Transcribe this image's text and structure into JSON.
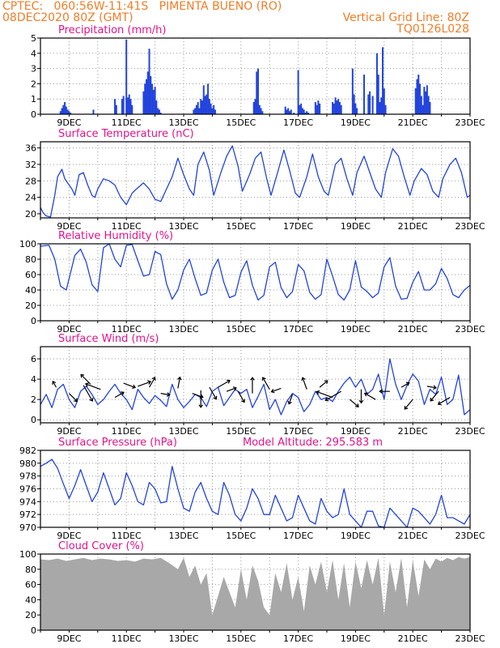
{
  "header": {
    "line1": "CPTEC:   060:56W-11:41S   PIMENTA BUENO (RO)",
    "line2_left": "08DEC2020 80Z (GMT)",
    "line2_right": "Vertical Grid Line: 80Z",
    "line3_right": "TQ0126L028"
  },
  "colors": {
    "header": "#f07d28",
    "title": "#e0148c",
    "series": "#2244dd",
    "cloud": "#a8a8a8",
    "arrow": "#000000"
  },
  "x_ticks": [
    "9DEC",
    "11DEC",
    "13DEC",
    "15DEC",
    "17DEC",
    "19DEC",
    "21DEC",
    "23DEC"
  ],
  "chart_data": [
    {
      "id": "precip",
      "type": "bar",
      "title": "Precipitation (mm/h)",
      "ylim": [
        0,
        5
      ],
      "yticks": [
        0,
        1,
        2,
        3,
        4,
        5
      ],
      "xlim": [
        0,
        15
      ],
      "grid": true,
      "x": [
        0.7,
        0.75,
        0.8,
        0.85,
        0.9,
        0.95,
        1.0,
        1.05,
        1.85,
        2.6,
        2.65,
        2.85,
        2.9,
        3.0,
        3.05,
        3.1,
        3.15,
        3.2,
        3.6,
        3.65,
        3.7,
        3.75,
        3.8,
        3.85,
        3.9,
        3.95,
        4.0,
        4.05,
        4.1,
        4.15,
        4.2,
        5.35,
        5.4,
        5.45,
        5.5,
        5.55,
        5.6,
        5.65,
        5.7,
        5.75,
        5.8,
        5.85,
        5.9,
        5.95,
        6.0,
        6.05,
        6.1,
        7.45,
        7.5,
        7.55,
        7.6,
        7.65,
        7.7,
        7.75,
        8.55,
        8.6,
        8.65,
        8.7,
        8.75,
        8.85,
        9.0,
        9.05,
        9.1,
        9.15,
        9.2,
        9.25,
        9.3,
        9.35,
        9.6,
        9.65,
        9.7,
        9.75,
        10.2,
        10.25,
        10.3,
        10.35,
        10.4,
        10.45,
        10.5,
        10.9,
        10.95,
        11.0,
        11.05,
        11.3,
        11.45,
        11.5,
        11.6,
        11.75,
        11.8,
        11.85,
        11.9,
        11.95,
        12.0,
        12.05,
        13.1,
        13.15,
        13.2,
        13.25,
        13.3,
        13.35,
        13.4,
        13.45,
        13.5,
        13.55,
        13.6
      ],
      "values": [
        0.2,
        0.4,
        0.6,
        0.8,
        0.5,
        0.3,
        0.2,
        0.1,
        0.3,
        1.0,
        0.6,
        1.0,
        1.2,
        4.9,
        1.1,
        1.3,
        1.0,
        0.6,
        1.5,
        2.0,
        2.3,
        2.8,
        4.3,
        2.5,
        2.0,
        1.6,
        1.8,
        0.9,
        0.4,
        0.3,
        0.1,
        0.3,
        0.4,
        0.6,
        0.8,
        0.4,
        1.0,
        0.9,
        1.9,
        1.2,
        1.3,
        2.0,
        1.0,
        0.7,
        0.4,
        0.6,
        0.3,
        0.8,
        1.0,
        2.8,
        3.0,
        0.6,
        0.4,
        0.2,
        0.5,
        0.3,
        0.4,
        0.2,
        0.3,
        0.1,
        2.9,
        0.6,
        0.7,
        0.4,
        0.3,
        0.1,
        0.2,
        0.1,
        0.8,
        0.6,
        0.9,
        0.7,
        0.8,
        0.7,
        1.1,
        0.9,
        1.0,
        0.8,
        0.6,
        3.0,
        1.3,
        0.7,
        0.4,
        2.6,
        1.3,
        1.5,
        1.2,
        4.0,
        2.6,
        0.8,
        1.1,
        4.4,
        1.7,
        0.6,
        1.7,
        2.3,
        2.6,
        2.0,
        1.2,
        0.6,
        1.8,
        1.5,
        1.9,
        1.2,
        0.8
      ]
    },
    {
      "id": "temp",
      "type": "line",
      "title": "Surface Temperature (nC)",
      "ylim": [
        19,
        37.5
      ],
      "yticks": [
        20,
        24,
        28,
        32,
        36
      ],
      "xlim": [
        0,
        15
      ],
      "grid": true,
      "x": [
        0,
        0.1,
        0.2,
        0.35,
        0.5,
        0.6,
        0.75,
        0.85,
        0.95,
        1.1,
        1.2,
        1.35,
        1.5,
        1.65,
        1.8,
        1.9,
        2.0,
        2.2,
        2.4,
        2.6,
        2.8,
        3.0,
        3.2,
        3.35,
        3.6,
        3.8,
        4.0,
        4.2,
        4.4,
        4.6,
        4.8,
        5.0,
        5.2,
        5.35,
        5.5,
        5.7,
        5.9,
        6.05,
        6.3,
        6.5,
        6.7,
        6.9,
        7.05,
        7.3,
        7.5,
        7.7,
        7.9,
        8.05,
        8.3,
        8.5,
        8.7,
        8.9,
        9.05,
        9.3,
        9.5,
        9.7,
        9.9,
        10.05,
        10.3,
        10.5,
        10.7,
        10.9,
        11.05,
        11.3,
        11.5,
        11.7,
        11.9,
        12.05,
        12.3,
        12.5,
        12.7,
        12.9,
        13.05,
        13.3,
        13.5,
        13.7,
        13.9,
        14.05,
        14.3,
        14.5,
        14.7,
        14.9,
        15.0
      ],
      "values": [
        21.5,
        20.2,
        19.5,
        19.2,
        24.5,
        29.0,
        30.8,
        28.5,
        27.5,
        26.0,
        24.5,
        29.5,
        30.0,
        27.0,
        24.5,
        24.0,
        26.0,
        28.5,
        28.0,
        27.0,
        24.0,
        22.2,
        25.0,
        26.0,
        27.5,
        26.0,
        23.5,
        23.0,
        26.0,
        29.0,
        33.5,
        29.5,
        26.0,
        24.5,
        32.0,
        35.0,
        30.5,
        24.5,
        30.0,
        34.0,
        36.5,
        31.5,
        25.5,
        29.5,
        33.5,
        35.0,
        28.5,
        24.5,
        30.5,
        35.5,
        30.5,
        25.0,
        24.0,
        29.0,
        34.5,
        29.0,
        25.5,
        24.5,
        32.0,
        33.5,
        28.5,
        24.5,
        30.0,
        34.0,
        30.0,
        26.0,
        24.0,
        30.0,
        35.8,
        34.0,
        29.0,
        24.5,
        28.0,
        31.0,
        29.5,
        25.5,
        24.0,
        28.5,
        32.0,
        33.5,
        30.0,
        24.0,
        24.5
      ]
    },
    {
      "id": "rh",
      "type": "line",
      "title": "Relative Humidity (%)",
      "ylim": [
        0,
        100
      ],
      "yticks": [
        0,
        20,
        40,
        60,
        80,
        100
      ],
      "xlim": [
        0,
        15
      ],
      "grid": true,
      "x": [
        0,
        0.3,
        0.5,
        0.7,
        0.9,
        1.2,
        1.4,
        1.6,
        1.8,
        2.0,
        2.2,
        2.4,
        2.6,
        2.8,
        3.0,
        3.2,
        3.4,
        3.6,
        3.8,
        4.0,
        4.2,
        4.4,
        4.6,
        4.8,
        5.0,
        5.2,
        5.4,
        5.6,
        5.8,
        6.0,
        6.2,
        6.4,
        6.6,
        6.8,
        7.0,
        7.2,
        7.4,
        7.6,
        7.8,
        8.0,
        8.2,
        8.4,
        8.6,
        8.8,
        9.0,
        9.2,
        9.4,
        9.6,
        9.8,
        10.0,
        10.2,
        10.4,
        10.6,
        10.8,
        11.0,
        11.2,
        11.4,
        11.6,
        11.8,
        12.0,
        12.2,
        12.4,
        12.6,
        12.8,
        13.0,
        13.2,
        13.4,
        13.6,
        13.8,
        14.0,
        14.2,
        14.4,
        14.6,
        14.8,
        15.0
      ],
      "values": [
        97,
        98,
        80,
        45,
        40,
        85,
        93,
        76,
        47,
        38,
        95,
        100,
        80,
        70,
        98,
        99,
        78,
        58,
        60,
        90,
        86,
        48,
        28,
        40,
        66,
        80,
        55,
        33,
        36,
        66,
        80,
        50,
        30,
        33,
        63,
        78,
        46,
        27,
        33,
        70,
        76,
        43,
        30,
        38,
        73,
        65,
        37,
        28,
        34,
        80,
        58,
        34,
        27,
        40,
        78,
        44,
        38,
        30,
        36,
        70,
        82,
        45,
        28,
        29,
        50,
        64,
        40,
        40,
        48,
        68,
        55,
        34,
        30,
        40,
        46
      ]
    },
    {
      "id": "wind",
      "type": "line",
      "title": "Surface Wind (m/s)",
      "ylim": [
        -0.3,
        7.2
      ],
      "yticks": [
        0,
        2,
        4,
        6
      ],
      "xlim": [
        0,
        15
      ],
      "grid": true,
      "x": [
        0,
        0.2,
        0.4,
        0.6,
        0.8,
        1.0,
        1.2,
        1.4,
        1.6,
        1.8,
        2.0,
        2.2,
        2.4,
        2.6,
        2.8,
        3.0,
        3.2,
        3.4,
        3.6,
        3.8,
        4.0,
        4.2,
        4.4,
        4.6,
        4.8,
        5.0,
        5.2,
        5.4,
        5.6,
        5.8,
        6.0,
        6.2,
        6.4,
        6.6,
        6.8,
        7.0,
        7.2,
        7.4,
        7.6,
        7.8,
        8.0,
        8.2,
        8.4,
        8.6,
        8.8,
        9.0,
        9.2,
        9.4,
        9.6,
        9.8,
        10.0,
        10.2,
        10.4,
        10.6,
        10.8,
        11.0,
        11.2,
        11.4,
        11.6,
        11.8,
        12.0,
        12.2,
        12.4,
        12.6,
        12.8,
        13.0,
        13.2,
        13.4,
        13.6,
        13.8,
        14.0,
        14.2,
        14.4,
        14.6,
        14.8,
        15.0
      ],
      "values": [
        1.5,
        2.5,
        1.2,
        3.0,
        3.5,
        2.0,
        1.2,
        2.8,
        3.3,
        2.5,
        1.5,
        2.0,
        2.8,
        3.5,
        2.6,
        2.0,
        1.0,
        3.0,
        2.2,
        1.6,
        2.4,
        1.9,
        1.3,
        3.5,
        2.0,
        1.2,
        1.8,
        2.5,
        2.2,
        1.3,
        2.8,
        3.2,
        1.4,
        2.2,
        3.0,
        2.6,
        3.0,
        1.2,
        2.3,
        3.5,
        1.0,
        2.0,
        0.5,
        1.8,
        2.6,
        2.2,
        0.8,
        1.5,
        2.8,
        2.0,
        2.2,
        1.8,
        2.8,
        3.6,
        4.2,
        3.2,
        4.0,
        2.5,
        3.0,
        4.5,
        2.0,
        6.0,
        3.5,
        2.0,
        3.4,
        4.5,
        3.8,
        1.5,
        3.0,
        2.5,
        4.2,
        1.5,
        2.0,
        4.4,
        0.5,
        1.0
      ]
    },
    {
      "id": "pres",
      "type": "line",
      "title": "Surface Pressure (hPa)",
      "annotation": "Model Altitude: 295.583 m",
      "ylim": [
        970,
        982
      ],
      "yticks": [
        970,
        972,
        974,
        976,
        978,
        980,
        982
      ],
      "xlim": [
        0,
        15
      ],
      "grid": true,
      "x": [
        0,
        0.2,
        0.4,
        0.6,
        0.8,
        1.0,
        1.2,
        1.4,
        1.6,
        1.8,
        2.0,
        2.2,
        2.4,
        2.6,
        2.8,
        3.0,
        3.2,
        3.4,
        3.6,
        3.8,
        4.0,
        4.2,
        4.4,
        4.6,
        4.8,
        5.0,
        5.2,
        5.4,
        5.6,
        5.8,
        6.0,
        6.2,
        6.4,
        6.6,
        6.8,
        7.0,
        7.2,
        7.4,
        7.6,
        7.8,
        8.0,
        8.2,
        8.4,
        8.6,
        8.8,
        9.0,
        9.2,
        9.4,
        9.6,
        9.8,
        10.0,
        10.2,
        10.4,
        10.6,
        10.8,
        11.0,
        11.2,
        11.4,
        11.6,
        11.8,
        12.0,
        12.2,
        12.4,
        12.6,
        12.8,
        13.0,
        13.2,
        13.4,
        13.6,
        13.8,
        14.0,
        14.2,
        14.4,
        14.6,
        14.8,
        15.0
      ],
      "values": [
        979.5,
        980.0,
        980.6,
        979.2,
        976.8,
        974.5,
        976.5,
        979.0,
        976.5,
        974.0,
        975.5,
        978.5,
        976.0,
        973.5,
        974.5,
        978.5,
        976.5,
        974.0,
        973.5,
        977.0,
        976.0,
        973.8,
        974.0,
        979.5,
        976.0,
        973.0,
        972.5,
        975.5,
        977.0,
        974.5,
        972.5,
        972.0,
        977.0,
        975.0,
        972.0,
        971.0,
        973.0,
        976.0,
        974.5,
        972.0,
        972.0,
        975.0,
        973.0,
        971.0,
        971.5,
        975.0,
        973.0,
        971.0,
        970.5,
        974.5,
        972.5,
        971.5,
        972.0,
        976.0,
        972.0,
        971.0,
        970.0,
        972.5,
        972.5,
        970.2,
        970.0,
        973.0,
        972.0,
        971.0,
        970.0,
        973.0,
        972.5,
        971.5,
        970.5,
        972.0,
        975.0,
        971.5,
        971.5,
        971.0,
        970.5,
        972.0
      ]
    },
    {
      "id": "cloud",
      "type": "area",
      "title": "Cloud Cover (%)",
      "ylim": [
        0,
        100
      ],
      "yticks": [
        0,
        20,
        40,
        60,
        80,
        100
      ],
      "xlim": [
        0,
        15
      ],
      "grid": true,
      "x": [
        0,
        0.3,
        0.6,
        0.9,
        1.2,
        1.5,
        1.8,
        2.1,
        2.4,
        2.7,
        3.0,
        3.3,
        3.6,
        3.9,
        4.2,
        4.5,
        4.8,
        5.0,
        5.2,
        5.4,
        5.6,
        5.8,
        6.0,
        6.2,
        6.4,
        6.6,
        6.8,
        7.0,
        7.2,
        7.4,
        7.6,
        7.8,
        8.0,
        8.2,
        8.4,
        8.6,
        8.8,
        9.0,
        9.2,
        9.4,
        9.6,
        9.8,
        10.0,
        10.2,
        10.4,
        10.6,
        10.8,
        11.0,
        11.2,
        11.4,
        11.6,
        11.8,
        12.0,
        12.2,
        12.4,
        12.6,
        12.8,
        13.0,
        13.2,
        13.4,
        13.6,
        13.8,
        14.0,
        14.2,
        14.4,
        14.6,
        14.8,
        15.0
      ],
      "values": [
        93,
        92,
        94,
        91,
        93,
        95,
        92,
        94,
        93,
        91,
        92,
        90,
        94,
        93,
        95,
        88,
        80,
        95,
        70,
        85,
        60,
        75,
        20,
        45,
        70,
        50,
        30,
        80,
        40,
        85,
        65,
        30,
        20,
        75,
        50,
        88,
        40,
        70,
        25,
        85,
        60,
        90,
        50,
        92,
        40,
        88,
        30,
        90,
        55,
        92,
        60,
        95,
        20,
        90,
        50,
        95,
        30,
        92,
        45,
        93,
        80,
        94,
        90,
        95,
        92,
        96,
        94,
        96
      ]
    }
  ],
  "wind_vectors": {
    "x": [
      0.55,
      1.0,
      1.5,
      1.75,
      2.1,
      2.6,
      2.9,
      3.4,
      3.8,
      4.2,
      4.8,
      5.3,
      5.6,
      5.9,
      6.2,
      6.5,
      6.9,
      7.4,
      8.0,
      8.4,
      8.8,
      9.3,
      9.75,
      10.2,
      10.5,
      10.8,
      11.2,
      11.7,
      12.2,
      12.6,
      13.0,
      13.5,
      13.9,
      14.3
    ],
    "speed": [
      3.2,
      2.6,
      3.4,
      3.5,
      3.0,
      2.2,
      3.6,
      3.3,
      3.2,
      2.6,
      3.1,
      2.6,
      2.9,
      3.2,
      3.2,
      2.8,
      2.8,
      2.6,
      3.0,
      3.1,
      2.5,
      3.0,
      3.2,
      2.2,
      2.8,
      2.0,
      3.0,
      2.0,
      2.8,
      3.2,
      2.0,
      3.3,
      2.8,
      2.2
    ],
    "dir_deg": [
      120,
      315,
      300,
      135,
      160,
      30,
      340,
      20,
      60,
      350,
      80,
      340,
      270,
      300,
      30,
      20,
      300,
      90,
      120,
      200,
      250,
      110,
      40,
      160,
      210,
      320,
      270,
      150,
      180,
      30,
      230,
      350,
      230,
      210
    ],
    "length": [
      0.6,
      1.0,
      1.6,
      1.2,
      1.4,
      0.9,
      1.1,
      1.2,
      1.0,
      0.8,
      1.0,
      1.0,
      1.5,
      1.2,
      1.2,
      0.9,
      1.1,
      1.4,
      1.2,
      0.9,
      0.9,
      1.1,
      0.9,
      1.5,
      1.6,
      1.0,
      1.2,
      1.1,
      0.9,
      0.8,
      1.1,
      0.8,
      1.1,
      1.2
    ]
  }
}
